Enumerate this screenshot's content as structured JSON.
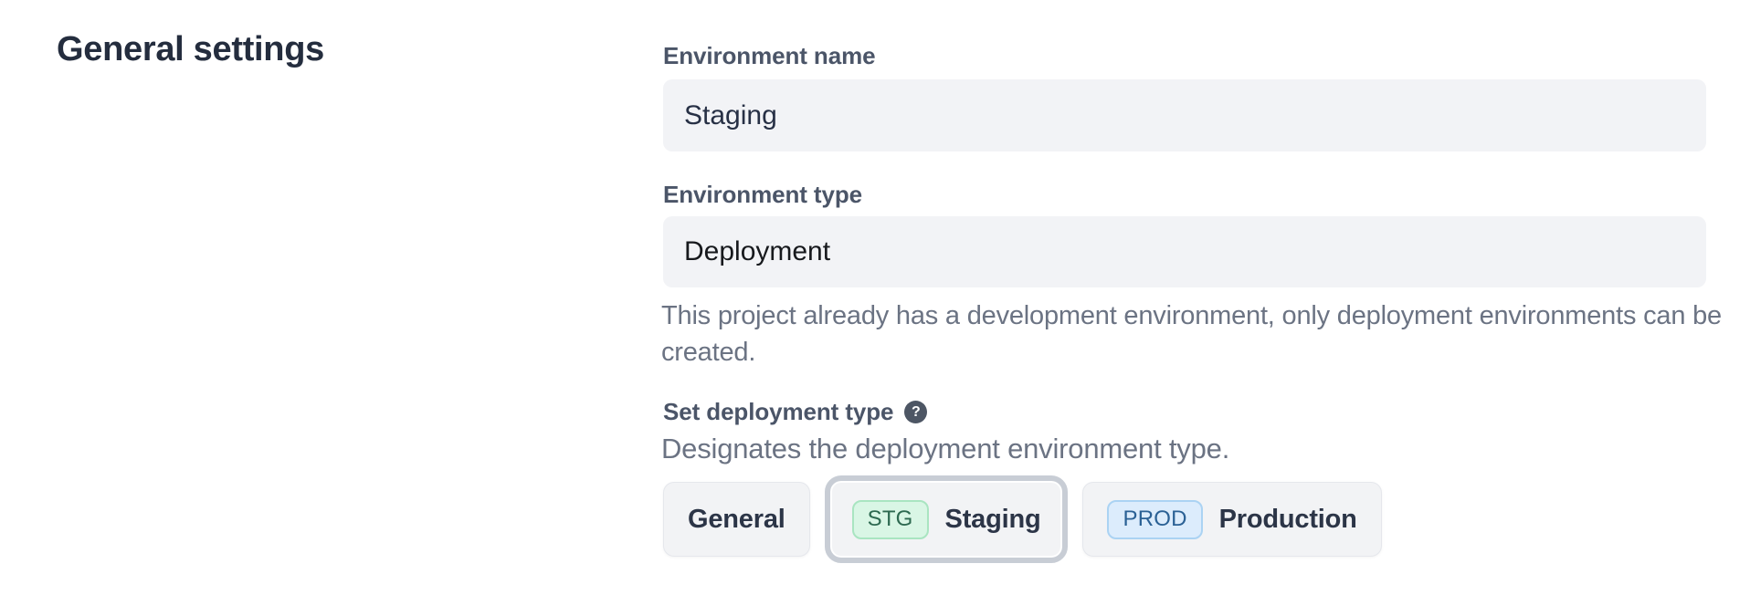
{
  "page": {
    "heading": "General settings"
  },
  "form": {
    "environment_name": {
      "label": "Environment name",
      "value": "Staging"
    },
    "environment_type": {
      "label": "Environment type",
      "value": "Deployment",
      "help": "This project already has a development environment, only deployment environments can be created."
    },
    "deployment_type": {
      "label": "Set deployment type",
      "help_icon": "question-mark-icon",
      "help_icon_glyph": "?",
      "description": "Designates the deployment environment type.",
      "options": [
        {
          "label": "General",
          "selected": false
        },
        {
          "label": "Staging",
          "badge": "STG",
          "selected": true
        },
        {
          "label": "Production",
          "badge": "PROD",
          "selected": false
        }
      ]
    }
  },
  "colors": {
    "heading_text": "#242d3e",
    "label_text": "#4b5568",
    "muted_text": "#6b7383",
    "input_bg": "#f2f3f6",
    "button_bg": "#f2f3f5",
    "button_text": "#2c3547",
    "selected_ring": "#c8cdd5",
    "help_icon_bg": "#4d5664",
    "badge_stg_bg": "#d9f6e5",
    "badge_stg_border": "#a9e5c1",
    "badge_stg_text": "#2d6950",
    "badge_prod_bg": "#dcecfc",
    "badge_prod_border": "#abd3f3",
    "badge_prod_text": "#2b6195"
  }
}
